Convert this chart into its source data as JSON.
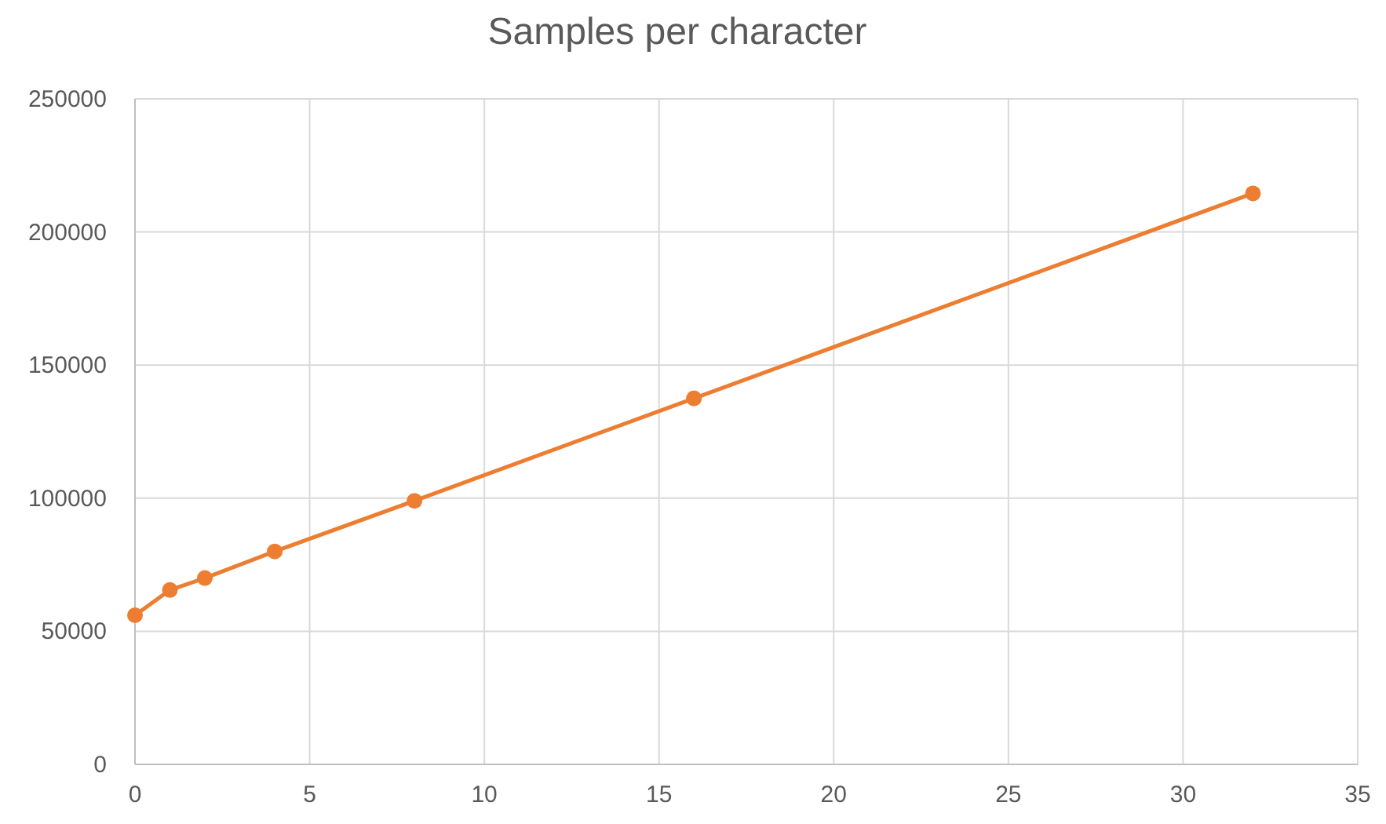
{
  "chart_data": {
    "type": "line",
    "title": "Samples per character",
    "x": [
      0,
      1,
      2,
      4,
      8,
      16,
      32
    ],
    "series": [
      {
        "color": "#ed7d31",
        "values": [
          56000,
          65500,
          70000,
          80000,
          99000,
          137500,
          214500
        ]
      }
    ],
    "xlim": [
      0,
      35
    ],
    "xticks": [
      0,
      5,
      10,
      15,
      20,
      25,
      30,
      35
    ],
    "ylim": [
      0,
      250000
    ],
    "yticks": [
      0,
      50000,
      100000,
      150000,
      200000,
      250000
    ],
    "grid": true,
    "marker": "circle",
    "line_style": "solid"
  }
}
